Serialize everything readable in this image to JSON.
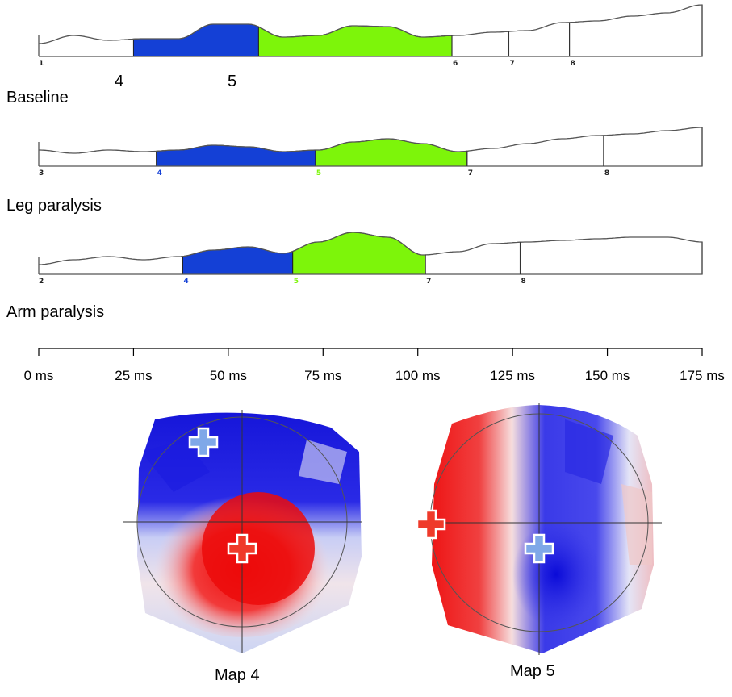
{
  "labels": {
    "baseline_marker_a": "4",
    "baseline_marker_b": "5",
    "row1": "Baseline",
    "row2": "Leg paralysis",
    "row3": "Arm paralysis",
    "map_left": "Map 4",
    "map_right": "Map 5"
  },
  "rows": [
    {
      "name": "Baseline",
      "start_label": "1",
      "segments": [
        {
          "label": "4",
          "start_ms": 25,
          "end_ms": 58,
          "fill": "#1440d6"
        },
        {
          "label": "5",
          "start_ms": 58,
          "end_ms": 109,
          "fill": "#7df50a"
        }
      ],
      "boundaries": [
        {
          "label": "6",
          "ms": 109
        },
        {
          "label": "7",
          "ms": 124
        },
        {
          "label": "8",
          "ms": 140
        }
      ]
    },
    {
      "name": "Leg paralysis",
      "start_label": "3",
      "segments": [
        {
          "label": "4",
          "start_ms": 31,
          "end_ms": 73,
          "fill": "#1440d6"
        },
        {
          "label": "5",
          "start_ms": 73,
          "end_ms": 113,
          "fill": "#7df50a"
        }
      ],
      "boundaries": [
        {
          "label": "7",
          "ms": 113
        },
        {
          "label": "8",
          "ms": 149
        }
      ]
    },
    {
      "name": "Arm paralysis",
      "start_label": "2",
      "segments": [
        {
          "label": "4",
          "start_ms": 38,
          "end_ms": 67,
          "fill": "#1440d6"
        },
        {
          "label": "5",
          "start_ms": 67,
          "end_ms": 102,
          "fill": "#7df50a"
        }
      ],
      "boundaries": [
        {
          "label": "7",
          "ms": 102
        },
        {
          "label": "8",
          "ms": 127
        }
      ]
    }
  ],
  "time_axis": {
    "ticks": [
      "0 ms",
      "25 ms",
      "50 ms",
      "75 ms",
      "100 ms",
      "125 ms",
      "150 ms",
      "175 ms"
    ],
    "values_ms": [
      0,
      25,
      50,
      75,
      100,
      125,
      150,
      175
    ]
  },
  "colors": {
    "map4_fill": "#1440d6",
    "map5_fill": "#7df50a",
    "positive": "#ee1c1c",
    "negative": "#1010e0"
  }
}
